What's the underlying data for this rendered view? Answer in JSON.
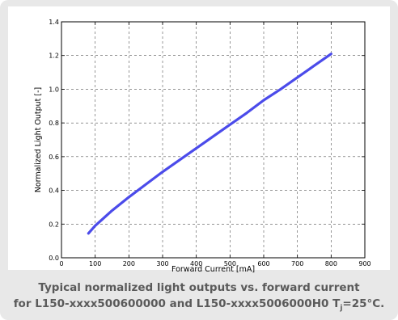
{
  "chart_data": {
    "type": "line",
    "xlabel": "Forward Current [mA]",
    "ylabel": "Normalized Light Output [-]",
    "xlim": [
      0,
      900
    ],
    "ylim": [
      0.0,
      1.4
    ],
    "xticks": [
      "0",
      "100",
      "200",
      "300",
      "400",
      "500",
      "600",
      "700",
      "800",
      "900"
    ],
    "yticks": [
      "0.0",
      "0.2",
      "0.4",
      "0.6",
      "0.8",
      "1.0",
      "1.2",
      "1.4"
    ],
    "grid": true,
    "series": [
      {
        "color": "#4b4bea",
        "x": [
          80,
          100,
          150,
          200,
          250,
          300,
          350,
          400,
          450,
          500,
          550,
          600,
          650,
          700,
          750,
          800
        ],
        "y": [
          0.145,
          0.19,
          0.28,
          0.36,
          0.435,
          0.51,
          0.58,
          0.65,
          0.72,
          0.79,
          0.86,
          0.935,
          1.0,
          1.07,
          1.14,
          1.21
        ]
      }
    ]
  },
  "caption": {
    "line1": "Typical normalized light outputs vs. forward current",
    "line2_pre": "for L150-xxxx500600000 and L150-xxxx5006000H0 T",
    "line2_sub": "j",
    "line2_post": "=25°C."
  }
}
